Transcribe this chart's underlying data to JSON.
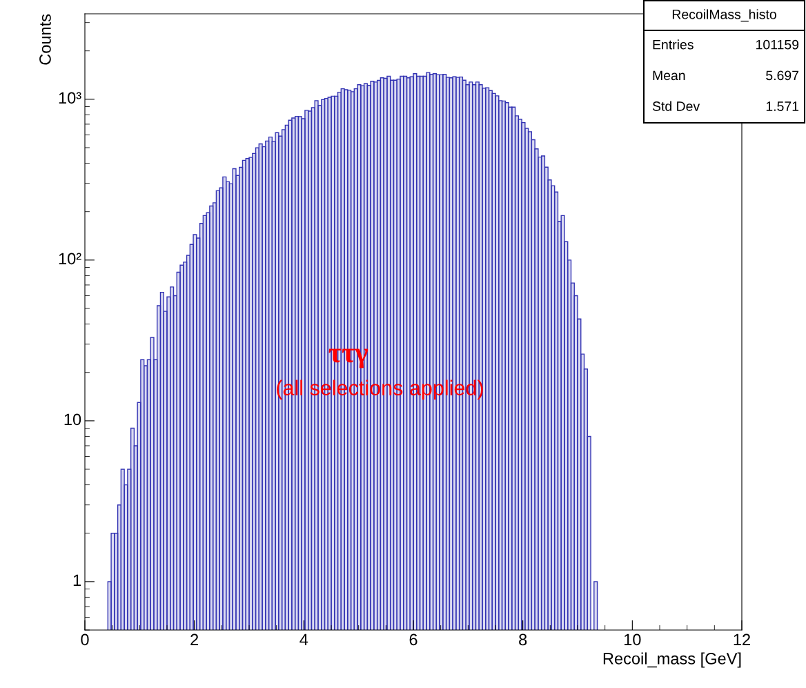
{
  "chart_data": {
    "type": "histogram",
    "xlabel": "Recoil_mass [GeV]",
    "ylabel": "Counts",
    "bins": [
      0.42,
      0.48,
      0.54,
      0.6,
      0.66,
      0.72,
      0.78,
      0.84,
      0.9,
      0.96,
      1.02,
      1.08,
      1.14,
      1.2,
      1.26,
      1.32,
      1.38,
      1.44,
      1.5,
      1.56,
      1.62,
      1.68,
      1.74,
      1.8,
      1.86,
      1.92,
      1.98,
      2.04,
      2.1,
      2.16,
      2.22,
      2.28,
      2.34,
      2.4,
      2.46,
      2.52,
      2.58,
      2.64,
      2.7,
      2.76,
      2.82,
      2.88,
      2.94,
      3.0,
      3.06,
      3.12,
      3.18,
      3.24,
      3.3,
      3.36,
      3.42,
      3.48,
      3.54,
      3.6,
      3.66,
      3.72,
      3.78,
      3.84,
      3.9,
      3.96,
      4.02,
      4.08,
      4.14,
      4.2,
      4.26,
      4.32,
      4.38,
      4.44,
      4.5,
      4.56,
      4.62,
      4.68,
      4.74,
      4.8,
      4.86,
      4.92,
      4.98,
      5.04,
      5.1,
      5.16,
      5.22,
      5.28,
      5.34,
      5.4,
      5.46,
      5.52,
      5.58,
      5.64,
      5.7,
      5.76,
      5.82,
      5.88,
      5.94,
      6.0,
      6.06,
      6.12,
      6.18,
      6.24,
      6.3,
      6.36,
      6.42,
      6.48,
      6.54,
      6.6,
      6.66,
      6.72,
      6.78,
      6.84,
      6.9,
      6.96,
      7.02,
      7.08,
      7.14,
      7.2,
      7.26,
      7.32,
      7.38,
      7.44,
      7.5,
      7.56,
      7.62,
      7.68,
      7.74,
      7.8,
      7.86,
      7.92,
      7.98,
      8.04,
      8.1,
      8.16,
      8.22,
      8.28,
      8.34,
      8.4,
      8.46,
      8.52,
      8.58,
      8.64,
      8.7,
      8.76,
      8.82,
      8.88,
      8.94,
      9.0,
      9.06,
      9.12,
      9.18,
      9.24,
      9.3,
      9.36
    ],
    "values": [
      1,
      2,
      2,
      3,
      5,
      4,
      5,
      9,
      7,
      13,
      24,
      22,
      24,
      33,
      24,
      52,
      63,
      48,
      59,
      68,
      60,
      84,
      93,
      97,
      107,
      125,
      144,
      137,
      169,
      189,
      197,
      217,
      227,
      270,
      281,
      329,
      307,
      298,
      370,
      336,
      377,
      417,
      428,
      435,
      460,
      499,
      528,
      507,
      550,
      582,
      547,
      620,
      590,
      647,
      690,
      740,
      765,
      783,
      780,
      757,
      853,
      844,
      887,
      980,
      916,
      995,
      1012,
      1028,
      1045,
      1045,
      1106,
      1162,
      1146,
      1140,
      1115,
      1162,
      1231,
      1215,
      1250,
      1220,
      1294,
      1280,
      1310,
      1359,
      1350,
      1390,
      1313,
      1313,
      1335,
      1390,
      1390,
      1359,
      1380,
      1442,
      1390,
      1390,
      1390,
      1466,
      1428,
      1442,
      1420,
      1420,
      1428,
      1368,
      1359,
      1380,
      1368,
      1375,
      1313,
      1231,
      1280,
      1231,
      1280,
      1231,
      1172,
      1180,
      1133,
      1087,
      1050,
      980,
      975,
      953,
      893,
      893,
      789,
      751,
      716,
      659,
      628,
      560,
      491,
      437,
      444,
      378,
      315,
      290,
      265,
      174,
      189,
      130,
      100,
      72,
      60,
      43,
      26,
      21,
      8,
      null,
      1
    ],
    "color": "#3333b3",
    "log": "y",
    "xlim": [
      0,
      12
    ],
    "xticks": [
      0,
      2,
      4,
      6,
      8,
      10,
      12
    ],
    "ylim": [
      0.5,
      3400
    ],
    "yticks": [
      1,
      10,
      {
        "value": 100,
        "label": "10²"
      },
      {
        "value": 1000,
        "label": "10³"
      }
    ],
    "grid": false,
    "annotations": [
      "ττγ",
      "(all selections applied)",
      "RecoilMass_histo",
      "Entries",
      "101159",
      "Mean",
      "5.697",
      "Std Dev",
      "1.571"
    ]
  }
}
